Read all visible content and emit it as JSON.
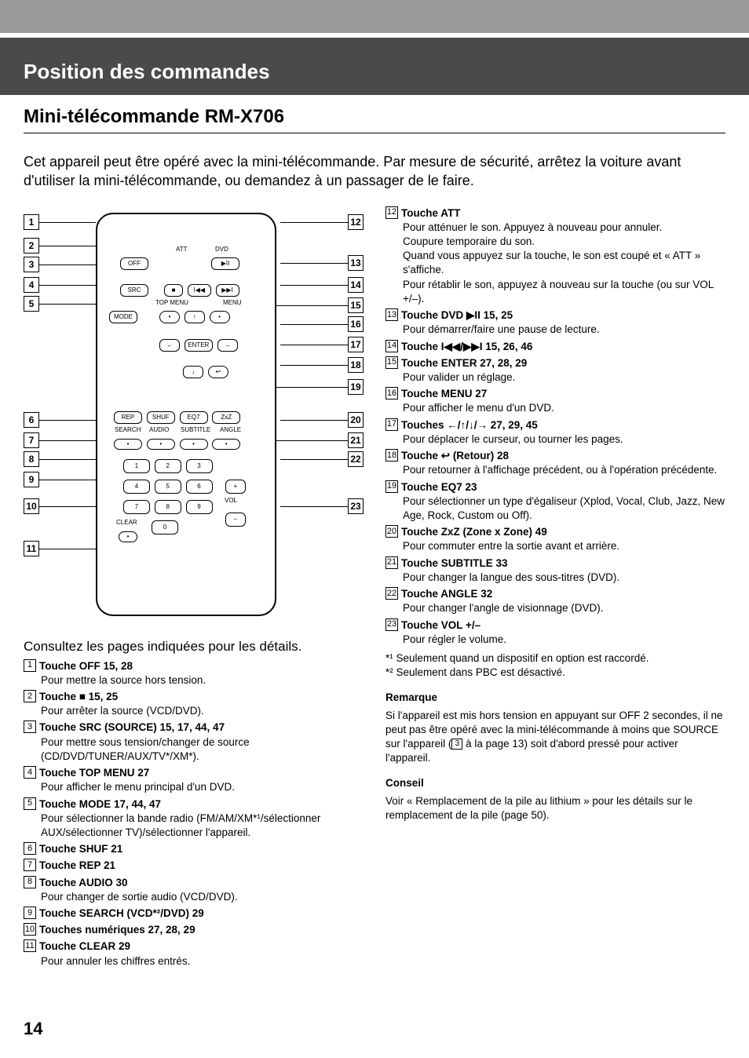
{
  "header": {
    "title": "Position des commandes",
    "subtitle": "Mini-télécommande RM-X706"
  },
  "intro": "Cet appareil peut être opéré avec la mini-télécommande. Par mesure de sécurité, arrêtez la voiture avant d'utiliser la mini-télécommande, ou demandez à un passager de le faire.",
  "consult_line": "Consultez les pages indiquées pour les détails.",
  "remote": {
    "labels": {
      "att": "ATT",
      "dvd": "DVD",
      "off": "OFF",
      "src": "SRC",
      "topmenu": "TOP MENU",
      "menu": "MENU",
      "mode": "MODE",
      "enter": "ENTER",
      "rep": "REP",
      "shuf": "SHUF",
      "eq7": "EQ7",
      "zxz": "ZxZ",
      "search": "SEARCH",
      "audio": "AUDIO",
      "subtitle": "SUBTITLE",
      "angle": "ANGLE",
      "clear": "CLEAR",
      "vol": "VOL",
      "plus": "+",
      "minus": "–"
    }
  },
  "left_items": [
    {
      "n": "1",
      "title": "Touche OFF  15, 28",
      "desc": "Pour mettre la source hors tension."
    },
    {
      "n": "2",
      "title": "Touche ■  15, 25",
      "desc": "Pour arrêter la source (VCD/DVD)."
    },
    {
      "n": "3",
      "title": "Touche SRC (SOURCE)  15, 17, 44, 47",
      "desc": "Pour mettre sous tension/changer de source (CD/DVD/TUNER/AUX/TV*/XM*)."
    },
    {
      "n": "4",
      "title": "Touche TOP MENU  27",
      "desc": "Pour afficher le menu principal d'un DVD."
    },
    {
      "n": "5",
      "title": "Touche MODE  17, 44, 47",
      "desc": "Pour sélectionner la bande radio (FM/AM/XM*¹/sélectionner AUX/sélectionner TV)/sélectionner l'appareil."
    },
    {
      "n": "6",
      "title": "Touche SHUF  21"
    },
    {
      "n": "7",
      "title": "Touche REP  21"
    },
    {
      "n": "8",
      "title": "Touche AUDIO  30",
      "desc": "Pour changer de sortie audio (VCD/DVD)."
    },
    {
      "n": "9",
      "title": "Touche SEARCH (VCD*²/DVD)  29"
    },
    {
      "n": "10",
      "title": "Touches numériques  27, 28, 29"
    },
    {
      "n": "11",
      "title": "Touche CLEAR  29",
      "desc": "Pour annuler les chiffres entrés."
    }
  ],
  "right_items": [
    {
      "n": "12",
      "title": "Touche ATT",
      "desc": "Pour atténuer le son. Appuyez à nouveau pour annuler.\nCoupure temporaire du son.\nQuand vous appuyez sur la touche, le son est coupé et « ATT » s'affiche.\nPour rétablir le son, appuyez à nouveau sur la touche (ou sur VOL +/–)."
    },
    {
      "n": "13",
      "title": "Touche DVD ▶II  15, 25",
      "desc": "Pour démarrer/faire une pause de lecture."
    },
    {
      "n": "14",
      "title": "Touche I◀◀/▶▶I  15, 26, 46"
    },
    {
      "n": "15",
      "title": "Touche ENTER  27, 28, 29",
      "desc": "Pour valider un réglage."
    },
    {
      "n": "16",
      "title": "Touche MENU  27",
      "desc": "Pour afficher le menu d'un DVD."
    },
    {
      "n": "17",
      "title": "Touches ←/↑/↓/→  27, 29, 45",
      "desc": "Pour déplacer le curseur, ou tourner les pages."
    },
    {
      "n": "18",
      "title": "Touche ↩ (Retour)  28",
      "desc": "Pour retourner à l'affichage précédent, ou à l'opération précédente."
    },
    {
      "n": "19",
      "title": "Touche EQ7  23",
      "desc": "Pour sélectionner un type d'égaliseur (Xplod, Vocal, Club, Jazz, New Age, Rock, Custom ou Off)."
    },
    {
      "n": "20",
      "title": "Touche ZxZ (Zone x Zone)  49",
      "desc": "Pour commuter entre la sortie avant et arrière."
    },
    {
      "n": "21",
      "title": "Touche SUBTITLE  33",
      "desc": "Pour changer la langue des sous-titres (DVD)."
    },
    {
      "n": "22",
      "title": "Touche ANGLE  32",
      "desc": "Pour changer l'angle de visionnage (DVD)."
    },
    {
      "n": "23",
      "title": "Touche VOL +/–",
      "desc": "Pour régler le volume."
    }
  ],
  "footnotes": [
    "*¹ Seulement quand un dispositif en option est raccordé.",
    "*² Seulement dans PBC est désactivé."
  ],
  "remarque": {
    "heading": "Remarque",
    "body_a": "Si l'appareil est mis hors tension en appuyant sur OFF 2 secondes, il ne peut pas être opéré avec la mini-télécommande à moins que SOURCE sur l'appareil (",
    "body_num": "3",
    "body_b": " à la page 13) soit d'abord pressé pour activer l'appareil."
  },
  "conseil": {
    "heading": "Conseil",
    "body": "Voir « Remplacement de la pile au lithium » pour les détails sur le remplacement de la pile (page 50)."
  },
  "page_number": "14",
  "colors": {
    "header_bg": "#4a4a4a",
    "top_strip": "#999999",
    "text": "#000000",
    "bg": "#ffffff"
  }
}
